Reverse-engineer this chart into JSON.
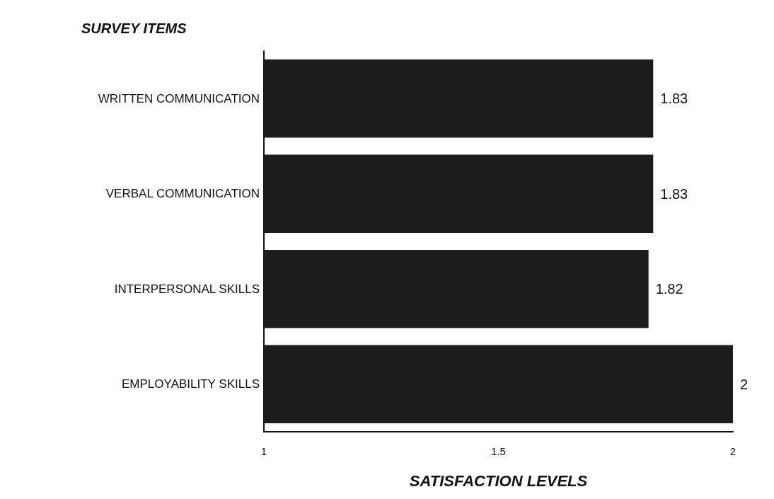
{
  "chart_data": {
    "type": "bar",
    "orientation": "horizontal",
    "ylabel": "SURVEY ITEMS",
    "xlabel": "SATISFACTION LEVELS",
    "categories": [
      "WRITTEN COMMUNICATION",
      "VERBAL COMMUNICATION",
      "INTERPERSONAL SKILLS",
      "EMPLOYABILITY SKILLS"
    ],
    "values": [
      1.83,
      1.83,
      1.82,
      2
    ],
    "color": "#1c1c1c",
    "xlim": [
      1,
      2
    ],
    "xticks": [
      1,
      1.5,
      2
    ],
    "data_labels": true,
    "grid": false
  }
}
